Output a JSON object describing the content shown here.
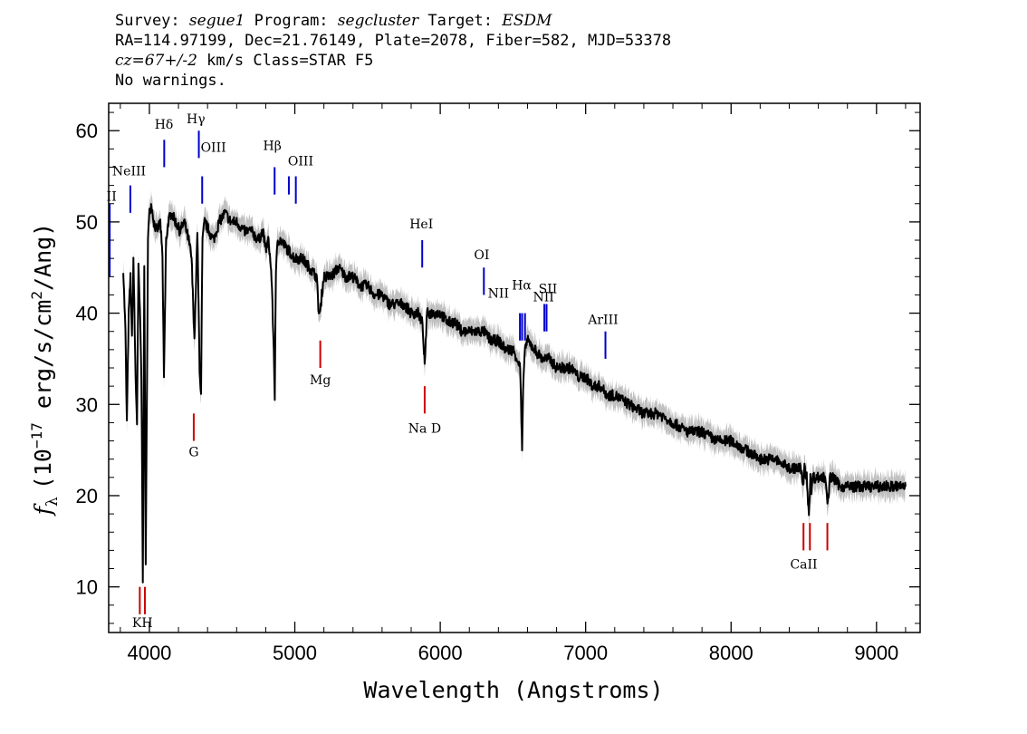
{
  "header": {
    "survey_label": "Survey:",
    "survey": "segue1",
    "program_label": "Program:",
    "program": "segcluster",
    "target_label": "Target:",
    "target": "ESDM",
    "line2": "RA=114.97199, Dec=21.76149, Plate=2078, Fiber=582, MJD=53378",
    "cz": "cz=67+/-2",
    "cz_unit": "km/s",
    "class": "Class=STAR F5",
    "warnings": "No warnings."
  },
  "chart_data": {
    "type": "line",
    "title": "",
    "xlabel": "Wavelength (Angstroms)",
    "ylabel": "f_λ (10^-17 erg/s/cm^2/Ang)",
    "ylabel_parts": {
      "f": "f",
      "lambda": "λ",
      "pre": "(10",
      "exp1": "−17",
      "mid": " erg/s/cm",
      "exp2": "2",
      "post": "/Ang)"
    },
    "xlim": [
      3720,
      9300
    ],
    "ylim": [
      5,
      63
    ],
    "xticks": [
      4000,
      5000,
      6000,
      7000,
      8000,
      9000
    ],
    "yticks": [
      10,
      20,
      30,
      40,
      50,
      60
    ],
    "grid": false,
    "colors": {
      "flux": "#000000",
      "error_band": "#c0c0c0",
      "emission_line": "#0000cc",
      "absorption_line": "#cc0000"
    },
    "series": [
      {
        "x": [
          3820,
          3835,
          3845,
          3858,
          3870,
          3880,
          3890,
          3905,
          3915,
          3925,
          3935,
          3945,
          3955,
          3965,
          3975,
          3990,
          4000,
          4015,
          4030,
          4050,
          4075,
          4090,
          4100,
          4115,
          4130,
          4150,
          4180,
          4210,
          4240,
          4270,
          4290,
          4310,
          4330,
          4345,
          4355,
          4365,
          4380,
          4410,
          4440,
          4480,
          4520,
          4560,
          4600,
          4650,
          4700,
          4750,
          4780,
          4800,
          4820,
          4840,
          4855,
          4862,
          4870,
          4880,
          4900,
          4950,
          5000,
          5050,
          5100,
          5150,
          5165,
          5175,
          5185,
          5200,
          5250,
          5300,
          5350,
          5400,
          5450,
          5500,
          5550,
          5600,
          5650,
          5700,
          5750,
          5800,
          5850,
          5875,
          5885,
          5893,
          5900,
          5910,
          5950,
          6000,
          6050,
          6100,
          6150,
          6200,
          6250,
          6300,
          6350,
          6400,
          6450,
          6500,
          6530,
          6550,
          6558,
          6563,
          6570,
          6580,
          6600,
          6650,
          6700,
          6750,
          6800,
          6850,
          6900,
          6950,
          7000,
          7050,
          7100,
          7150,
          7200,
          7300,
          7400,
          7500,
          7600,
          7700,
          7800,
          7900,
          8000,
          8100,
          8200,
          8300,
          8400,
          8480,
          8495,
          8505,
          8520,
          8535,
          8545,
          8550,
          8560,
          8600,
          8650,
          8665,
          8680,
          8700,
          8750,
          8800,
          8850,
          8900,
          8950,
          9000,
          9050,
          9100,
          9150,
          9200
        ],
        "y": [
          45,
          38,
          28,
          40,
          44,
          37,
          46,
          33,
          28,
          45,
          40,
          33,
          11,
          45,
          12,
          48,
          51,
          52,
          50,
          49,
          50,
          46,
          33,
          48,
          50,
          51,
          50,
          49,
          50,
          48,
          46,
          37,
          49,
          34,
          31,
          48,
          50,
          49,
          48,
          50,
          51,
          50,
          50,
          49,
          49,
          48,
          49,
          47,
          48,
          44,
          36,
          31,
          44,
          48,
          48,
          47,
          46,
          46,
          45,
          44,
          40,
          40,
          42,
          44,
          44,
          45,
          44,
          44,
          43,
          43,
          42,
          42,
          41,
          41,
          41,
          40,
          40,
          39,
          37,
          34,
          37,
          40,
          40,
          40,
          39,
          39,
          38,
          38,
          38,
          38,
          37,
          37,
          36,
          36,
          35,
          34,
          28,
          25,
          31,
          36,
          37,
          36,
          35,
          35,
          34,
          34,
          34,
          33,
          33,
          32,
          32,
          31,
          31,
          30,
          29,
          29,
          28,
          27,
          27,
          26,
          26,
          25,
          24,
          24,
          23,
          23,
          21,
          23,
          22,
          18,
          22,
          20,
          22,
          22,
          22,
          19,
          22,
          22,
          21,
          21,
          21,
          21,
          21,
          21,
          21,
          21,
          21,
          21
        ]
      }
    ],
    "emission_lines": [
      {
        "label": "OII",
        "x": 3727,
        "y": [
          44,
          52
        ]
      },
      {
        "label": "NeIII",
        "x": 3869,
        "y": [
          51,
          54
        ]
      },
      {
        "label": "Hδ",
        "x": 4102,
        "y": [
          56,
          59
        ]
      },
      {
        "label": "Hγ",
        "x": 4340,
        "y": [
          57,
          60
        ]
      },
      {
        "label": "OIII",
        "x": 4363,
        "y": [
          52,
          55
        ]
      },
      {
        "label": "Hβ",
        "x": 4861,
        "y": [
          53,
          56
        ]
      },
      {
        "label": "OIII",
        "x": 4959,
        "y": [
          53,
          55
        ]
      },
      {
        "label": "OIII",
        "x": 5007,
        "y": [
          52,
          55
        ]
      },
      {
        "label": "HeI",
        "x": 5876,
        "y": [
          45,
          48
        ]
      },
      {
        "label": "OI",
        "x": 6300,
        "y": [
          42,
          45
        ]
      },
      {
        "label": "NII",
        "x": 6548,
        "y": [
          37,
          40
        ]
      },
      {
        "label": "Hα",
        "x": 6563,
        "y": [
          37,
          40
        ]
      },
      {
        "label": "NII",
        "x": 6583,
        "y": [
          37,
          40
        ]
      },
      {
        "label": "SII",
        "x": 6716,
        "y": [
          38,
          41
        ]
      },
      {
        "label": "SII",
        "x": 6731,
        "y": [
          38,
          41
        ]
      },
      {
        "label": "ArIII",
        "x": 7136,
        "y": [
          35,
          38
        ]
      }
    ],
    "emission_labels": [
      {
        "text": "II",
        "x": 3740,
        "y": 52.3
      },
      {
        "text": "NeIII",
        "x": 3860,
        "y": 55.1
      },
      {
        "text": "Hδ",
        "x": 4100,
        "y": 60.2
      },
      {
        "text": "Hγ",
        "x": 4320,
        "y": 60.8
      },
      {
        "text": "OIII",
        "x": 4440,
        "y": 57.7
      },
      {
        "text": "Hβ",
        "x": 4845,
        "y": 57.9
      },
      {
        "text": "OIII",
        "x": 5040,
        "y": 56.2
      },
      {
        "text": "HeI",
        "x": 5870,
        "y": 49.3
      },
      {
        "text": "OI",
        "x": 6285,
        "y": 45.9
      },
      {
        "text": "NII",
        "x": 6400,
        "y": 41.7
      },
      {
        "text": "Hα",
        "x": 6560,
        "y": 42.6
      },
      {
        "text": "NII",
        "x": 6710,
        "y": 41.3
      },
      {
        "text": "SII",
        "x": 6740,
        "y": 42.2
      },
      {
        "text": "ArIII",
        "x": 7120,
        "y": 38.8
      }
    ],
    "absorption_lines": [
      {
        "label": "K",
        "x": 3934,
        "y": [
          7,
          10
        ]
      },
      {
        "label": "H",
        "x": 3969,
        "y": [
          7,
          10
        ]
      },
      {
        "label": "G",
        "x": 4305,
        "y": [
          26,
          29
        ]
      },
      {
        "label": "Mg",
        "x": 5175,
        "y": [
          34,
          37
        ]
      },
      {
        "label": "Na D",
        "x": 5893,
        "y": [
          29,
          32
        ]
      },
      {
        "label": "CaII",
        "x": 8498,
        "y": [
          14,
          17
        ]
      },
      {
        "label": "CaII",
        "x": 8542,
        "y": [
          14,
          17
        ]
      },
      {
        "label": "CaII",
        "x": 8662,
        "y": [
          14,
          17
        ]
      }
    ],
    "absorption_labels": [
      {
        "text": "KH",
        "x": 3952,
        "y": 5.6
      },
      {
        "text": "G",
        "x": 4305,
        "y": 24.3
      },
      {
        "text": "Mg",
        "x": 5175,
        "y": 32.2
      },
      {
        "text": "Na D",
        "x": 5893,
        "y": 26.9
      },
      {
        "text": "CaII",
        "x": 8500,
        "y": 12.0
      }
    ]
  }
}
